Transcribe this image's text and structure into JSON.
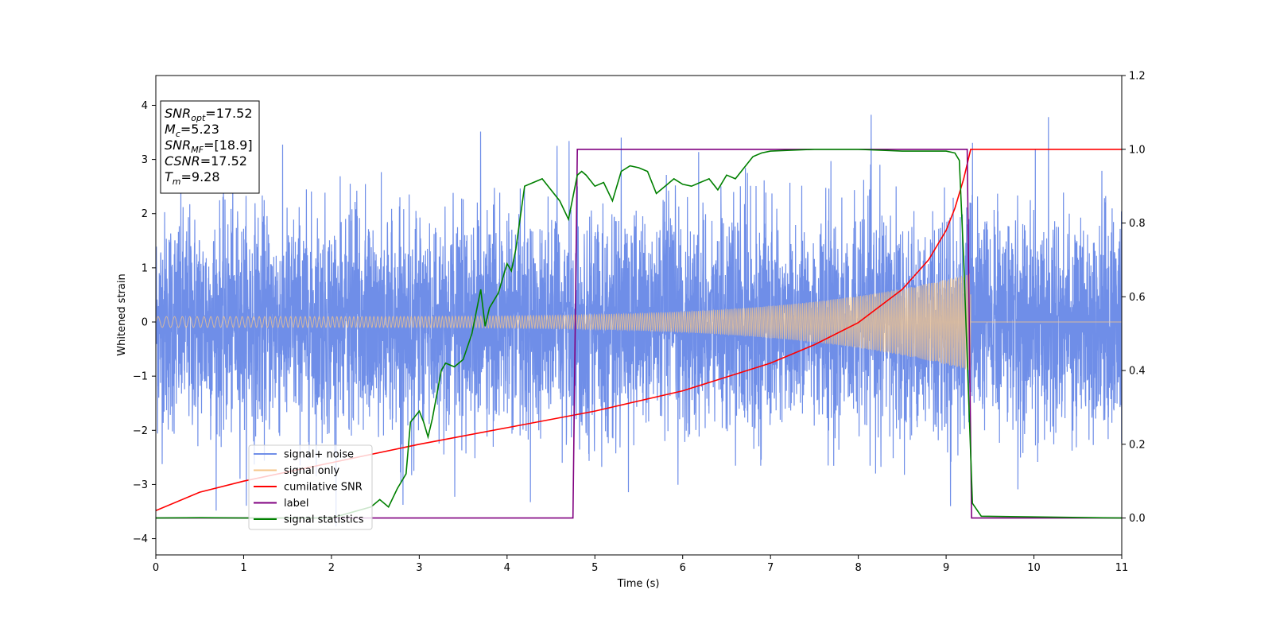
{
  "chart_data": {
    "type": "line",
    "xlabel": "Time (s)",
    "ylabel": "Whitened strain",
    "xlim": [
      0,
      11
    ],
    "ylim_left": [
      -4.3,
      4.55
    ],
    "ylim_right": [
      -0.1,
      1.2
    ],
    "x_ticks": [
      0,
      1,
      2,
      3,
      4,
      5,
      6,
      7,
      8,
      9,
      10,
      11
    ],
    "y_left_ticks": [
      -4,
      -3,
      -2,
      -1,
      0,
      1,
      2,
      3,
      4
    ],
    "y_right_ticks": [
      0.0,
      0.2,
      0.4,
      0.6,
      0.8,
      1.0,
      1.2
    ],
    "grid": false,
    "legend_position": "lower-left",
    "annotation": [
      {
        "main": "SNR",
        "sub": "opt",
        "value": "=17.52"
      },
      {
        "main": "M",
        "sub": "c",
        "value": "=5.23"
      },
      {
        "main": "SNR",
        "sub": "MF",
        "value": "=[18.9]"
      },
      {
        "main": "CSNR",
        "sub": "",
        "value": "=17.52"
      },
      {
        "main": "T",
        "sub": "m",
        "value": "=9.28"
      }
    ],
    "series": [
      {
        "name": "signal+ noise",
        "axis": "left",
        "color": "#6f8ee8",
        "kind": "noise",
        "noise_std": 1.0,
        "approx_range": [
          -3.9,
          4.2
        ]
      },
      {
        "name": "signal only",
        "axis": "left",
        "color": "#f5c689",
        "kind": "chirp",
        "start_amplitude": 0.1,
        "end_amplitude": 0.9,
        "end_time": 9.28
      },
      {
        "name": "cumilative SNR",
        "axis": "right",
        "color": "#ff0000",
        "kind": "line",
        "x": [
          0,
          0.5,
          1,
          2,
          3,
          4,
          5,
          6,
          7,
          7.5,
          8,
          8.5,
          8.8,
          9.0,
          9.1,
          9.2,
          9.28,
          11
        ],
        "y": [
          0.02,
          0.07,
          0.1,
          0.15,
          0.2,
          0.245,
          0.29,
          0.345,
          0.42,
          0.47,
          0.53,
          0.62,
          0.7,
          0.78,
          0.84,
          0.92,
          1.0,
          1.0
        ]
      },
      {
        "name": "label",
        "axis": "right",
        "color": "#800080",
        "kind": "line",
        "x": [
          0,
          4.75,
          4.8,
          9.24,
          9.29,
          11
        ],
        "y": [
          0,
          0,
          1,
          1,
          0,
          0
        ]
      },
      {
        "name": "signal statistics",
        "axis": "right",
        "color": "#008000",
        "kind": "line",
        "x": [
          0,
          0.5,
          1,
          1.5,
          2,
          2.3,
          2.45,
          2.55,
          2.65,
          2.75,
          2.85,
          2.9,
          3.0,
          3.05,
          3.1,
          3.15,
          3.25,
          3.3,
          3.4,
          3.5,
          3.6,
          3.7,
          3.75,
          3.8,
          3.9,
          4.0,
          4.05,
          4.1,
          4.2,
          4.3,
          4.4,
          4.5,
          4.6,
          4.7,
          4.8,
          4.85,
          4.9,
          5.0,
          5.1,
          5.2,
          5.3,
          5.4,
          5.5,
          5.6,
          5.7,
          5.8,
          5.9,
          6.0,
          6.1,
          6.2,
          6.3,
          6.4,
          6.5,
          6.6,
          6.7,
          6.8,
          6.9,
          7.0,
          7.5,
          8.0,
          8.5,
          9.0,
          9.1,
          9.15,
          9.2,
          9.3,
          9.4,
          11
        ],
        "y": [
          0,
          0.001,
          0,
          0,
          0,
          0.02,
          0.03,
          0.05,
          0.03,
          0.08,
          0.12,
          0.26,
          0.29,
          0.26,
          0.22,
          0.27,
          0.4,
          0.42,
          0.41,
          0.43,
          0.5,
          0.62,
          0.52,
          0.57,
          0.61,
          0.69,
          0.67,
          0.73,
          0.9,
          0.91,
          0.92,
          0.89,
          0.86,
          0.81,
          0.93,
          0.94,
          0.93,
          0.9,
          0.91,
          0.86,
          0.94,
          0.955,
          0.95,
          0.94,
          0.88,
          0.9,
          0.92,
          0.905,
          0.9,
          0.91,
          0.92,
          0.89,
          0.93,
          0.92,
          0.95,
          0.98,
          0.99,
          0.995,
          1.0,
          1.0,
          0.995,
          0.995,
          0.99,
          0.97,
          0.7,
          0.04,
          0.005,
          0
        ]
      }
    ]
  }
}
